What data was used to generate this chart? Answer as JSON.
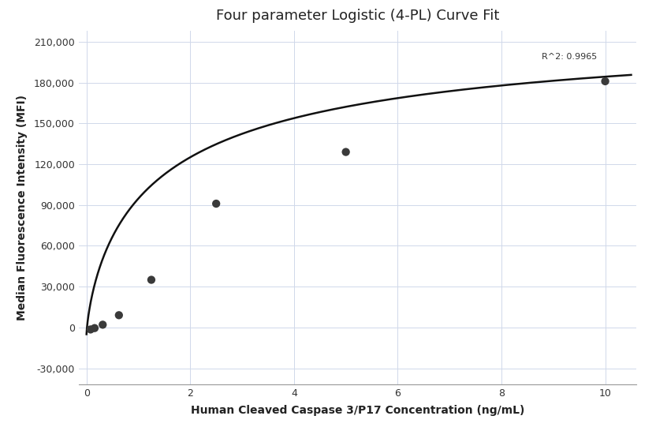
{
  "title": "Four parameter Logistic (4-PL) Curve Fit",
  "xlabel": "Human Cleaved Caspase 3/P17 Concentration (ng/mL)",
  "ylabel": "Median Fluorescence Intensity (MFI)",
  "scatter_x": [
    0.078,
    0.156,
    0.3125,
    0.625,
    1.25,
    2.5,
    5.0,
    10.0
  ],
  "scatter_y": [
    -1500,
    -500,
    2000,
    9000,
    35000,
    91000,
    129000,
    181000
  ],
  "r_squared": "R^2: 0.9965",
  "r2_x": 9.85,
  "r2_y": 196000,
  "xlim": [
    -0.15,
    10.6
  ],
  "ylim": [
    -42000,
    218000
  ],
  "yticks": [
    -30000,
    0,
    30000,
    60000,
    90000,
    120000,
    150000,
    180000,
    210000
  ],
  "xticks": [
    0,
    2,
    4,
    6,
    8,
    10
  ],
  "background_color": "#ffffff",
  "grid_color": "#d0d8ea",
  "scatter_color": "#3a3a3a",
  "curve_color": "#111111",
  "title_fontsize": 13,
  "label_fontsize": 10,
  "tick_fontsize": 9,
  "annotation_fontsize": 8,
  "4pl_A": -5000,
  "4pl_D": 230000,
  "4pl_C": 1.5,
  "4pl_B": 0.75
}
